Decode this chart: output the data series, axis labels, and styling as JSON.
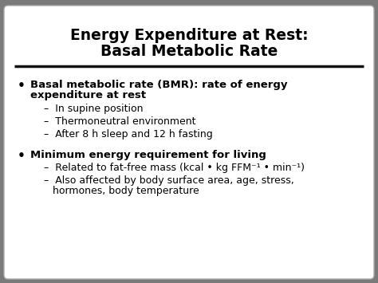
{
  "title_line1": "Energy Expenditure at Rest:",
  "title_line2": "Basal Metabolic Rate",
  "bg_outer": "#7a7a7a",
  "bg_inner": "#ffffff",
  "title_color": "#000000",
  "text_color": "#000000",
  "sub1_1": "In supine position",
  "sub1_2": "Thermoneutral environment",
  "sub1_3": "After 8 h sleep and 12 h fasting",
  "bullet1_text_l1": "Basal metabolic rate (BMR): rate of energy",
  "bullet1_text_l2": "expenditure at rest",
  "bullet2_bold": "Minimum energy requirement for living",
  "sub2_1": "Related to fat-free mass (kcal • kg FFM⁻¹ • min⁻¹)",
  "sub2_2a": "Also affected by body surface area, age, stress,",
  "sub2_2b": "hormones, body temperature",
  "divider_color": "#111111",
  "title_fontsize": 13.5,
  "body_fontsize": 9.5,
  "sub_fontsize": 9.0,
  "bullet_fontsize": 11.0
}
